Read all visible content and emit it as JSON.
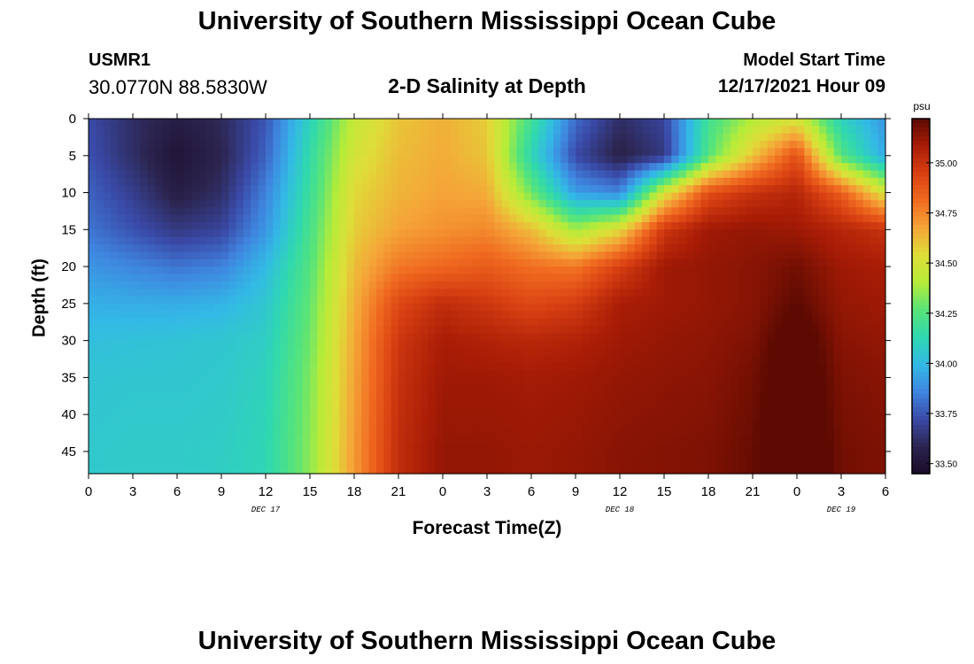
{
  "page": {
    "title": "University of Southern Mississippi Ocean Cube",
    "station": "USMR1",
    "coords": "30.0770N  88.5830W",
    "subtitle": "2-D Salinity at Depth",
    "model_start_label": "Model Start Time",
    "model_start_value": "12/17/2021 Hour 09",
    "title_repeat": "University of Southern Mississippi Ocean Cube"
  },
  "chart_data": {
    "type": "heatmap",
    "title": "2-D Salinity at Depth",
    "xlabel": "Forecast Time(Z)",
    "ylabel": "Depth (ft)",
    "x_tick_labels": [
      "0",
      "3",
      "6",
      "9",
      "12",
      "15",
      "18",
      "21",
      "0",
      "3",
      "6",
      "9",
      "12",
      "15",
      "18",
      "21",
      "0",
      "3",
      "6"
    ],
    "x_day_labels": [
      {
        "label": "DEC 17",
        "tick_index": 4
      },
      {
        "label": "DEC 18",
        "tick_index": 12
      },
      {
        "label": "DEC 19",
        "tick_index": 17
      }
    ],
    "x_range_hours": [
      0,
      54
    ],
    "y_ticks": [
      0,
      5,
      10,
      15,
      20,
      25,
      30,
      35,
      40,
      45
    ],
    "ylim": [
      0,
      48
    ],
    "y_inverted": true,
    "colorbar": {
      "unit": "psu",
      "range": [
        33.45,
        35.22
      ],
      "tick_values": [
        33.5,
        33.75,
        34.0,
        34.25,
        34.5,
        34.75,
        35.0
      ],
      "tick_labels": [
        "33.50",
        "33.75",
        "34.00",
        "34.25",
        "34.50",
        "34.75",
        "35.00"
      ]
    },
    "colors": {
      "stops": [
        "#1a0b28",
        "#2c2550",
        "#3a4aa8",
        "#3f86e0",
        "#33b9e6",
        "#2fd8b0",
        "#58e478",
        "#b6ec38",
        "#dede38",
        "#f5a538",
        "#f06a20",
        "#d84012",
        "#a81c06",
        "#5c0a02"
      ]
    },
    "x_hours": [
      0,
      3,
      6,
      9,
      12,
      15,
      18,
      21,
      24,
      27,
      30,
      33,
      36,
      39,
      42,
      45,
      48,
      51,
      54
    ],
    "depths": [
      0,
      5,
      10,
      15,
      20,
      25,
      30,
      35,
      40,
      45,
      48
    ],
    "salinity": [
      [
        33.72,
        33.62,
        33.55,
        33.6,
        33.75,
        34.1,
        34.45,
        34.6,
        34.65,
        34.58,
        34.2,
        33.8,
        33.62,
        33.7,
        34.2,
        34.4,
        34.5,
        34.1,
        33.9
      ],
      [
        33.74,
        33.62,
        33.5,
        33.58,
        33.78,
        34.15,
        34.5,
        34.62,
        34.66,
        34.6,
        34.12,
        33.72,
        33.56,
        33.66,
        34.25,
        34.6,
        34.9,
        34.25,
        33.95
      ],
      [
        33.78,
        33.68,
        33.55,
        33.62,
        33.85,
        34.18,
        34.55,
        34.64,
        34.68,
        34.66,
        34.3,
        33.92,
        33.86,
        34.5,
        34.9,
        35.0,
        35.05,
        34.85,
        34.5
      ],
      [
        33.82,
        33.74,
        33.66,
        33.7,
        33.9,
        34.22,
        34.58,
        34.68,
        34.72,
        34.74,
        34.62,
        34.38,
        34.55,
        34.98,
        35.1,
        35.12,
        35.1,
        35.05,
        35.0
      ],
      [
        33.9,
        33.86,
        33.82,
        33.85,
        34.0,
        34.25,
        34.62,
        34.78,
        34.82,
        34.86,
        34.8,
        34.78,
        34.95,
        35.1,
        35.12,
        35.14,
        35.18,
        35.1,
        35.08
      ],
      [
        33.97,
        33.96,
        33.96,
        33.98,
        34.05,
        34.28,
        34.65,
        34.92,
        35.02,
        34.98,
        34.92,
        34.96,
        35.08,
        35.1,
        35.12,
        35.14,
        35.22,
        35.12,
        35.1
      ],
      [
        34.02,
        34.03,
        34.04,
        34.05,
        34.08,
        34.3,
        34.67,
        34.98,
        35.08,
        35.06,
        35.04,
        35.06,
        35.1,
        35.12,
        35.13,
        35.16,
        35.28,
        35.14,
        35.12
      ],
      [
        34.04,
        34.05,
        34.05,
        34.06,
        34.1,
        34.32,
        34.68,
        35.0,
        35.1,
        35.1,
        35.09,
        35.1,
        35.12,
        35.13,
        35.14,
        35.18,
        35.3,
        35.16,
        35.14
      ],
      [
        34.05,
        34.06,
        34.06,
        34.07,
        34.11,
        34.33,
        34.69,
        35.01,
        35.11,
        35.11,
        35.1,
        35.11,
        35.13,
        35.14,
        35.15,
        35.19,
        35.31,
        35.17,
        35.15
      ],
      [
        34.06,
        34.07,
        34.07,
        34.08,
        34.12,
        34.34,
        34.7,
        35.02,
        35.12,
        35.12,
        35.11,
        35.12,
        35.14,
        35.15,
        35.16,
        35.2,
        35.33,
        35.18,
        35.16
      ],
      [
        34.06,
        34.07,
        34.07,
        34.08,
        34.12,
        34.34,
        34.7,
        35.02,
        35.12,
        35.12,
        35.11,
        35.12,
        35.14,
        35.15,
        35.16,
        35.2,
        35.34,
        35.18,
        35.16
      ]
    ]
  }
}
